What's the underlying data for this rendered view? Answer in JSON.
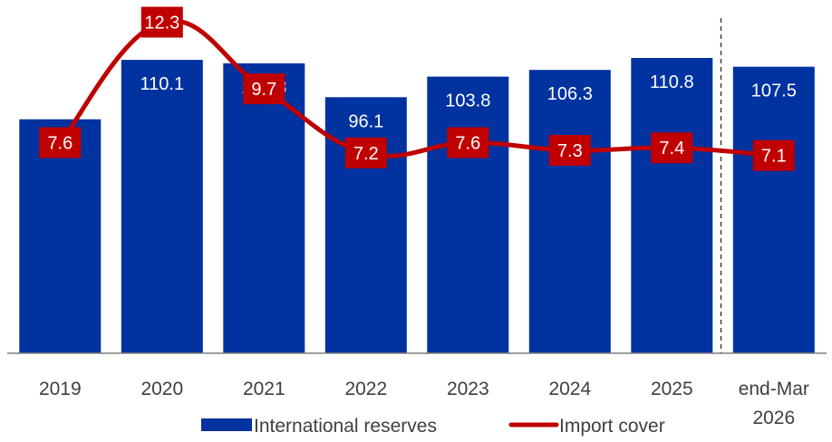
{
  "chart_data": {
    "type": "bar",
    "categories": [
      "2019",
      "2020",
      "2021",
      "2022",
      "2023",
      "2024",
      "2025",
      "end-Mar\n2026"
    ],
    "series": [
      {
        "name": "International reserves",
        "type": "bar",
        "values": [
          87.8,
          110.1,
          108.8,
          96.1,
          103.8,
          106.3,
          110.8,
          107.5
        ],
        "color": "#0033A0"
      },
      {
        "name": "Import cover",
        "type": "line",
        "values": [
          7.6,
          12.3,
          9.7,
          7.2,
          7.6,
          7.3,
          7.4,
          7.1
        ],
        "color": "#C00000"
      }
    ],
    "legend_position": "bottom",
    "separator_before_last": true,
    "grid": false
  }
}
